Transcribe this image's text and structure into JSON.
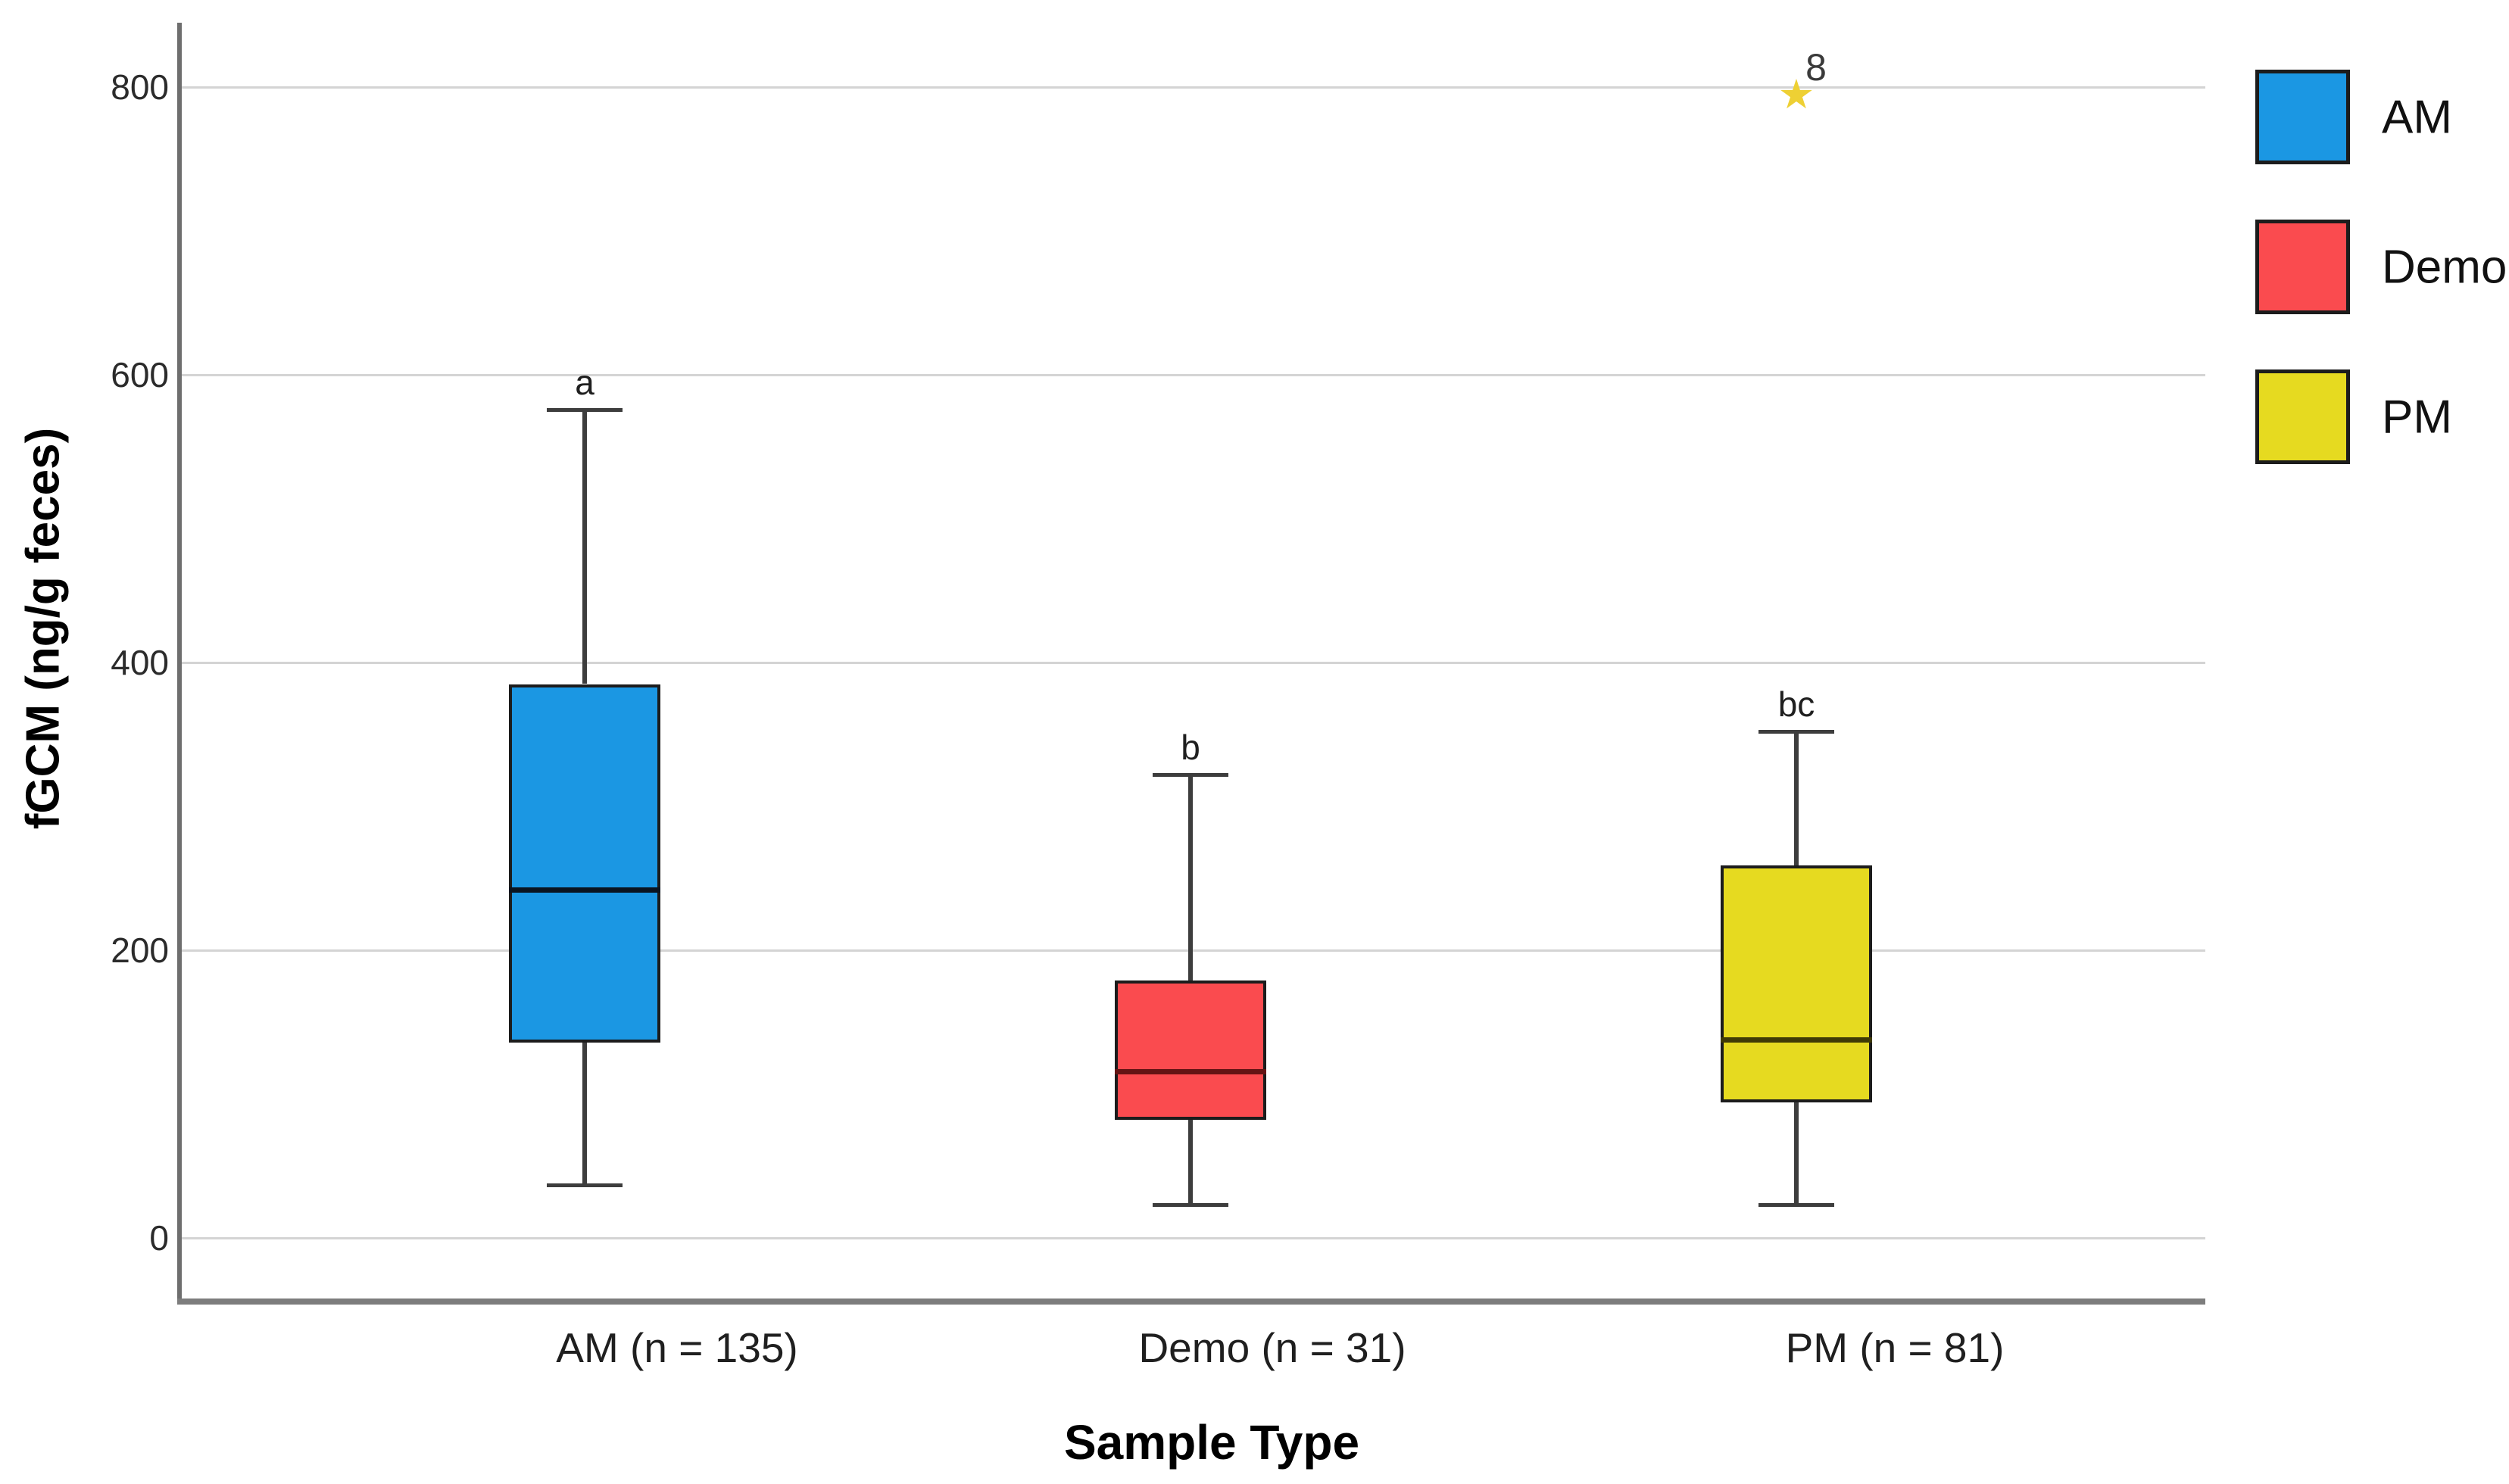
{
  "chart_data": {
    "type": "boxplot",
    "title": "",
    "xlabel": "Sample Type",
    "ylabel": "fGCM (ng/g feces)",
    "ylim": [
      0,
      800
    ],
    "yticks": [
      0,
      200,
      400,
      600,
      800
    ],
    "grid": true,
    "legend_position": "right",
    "legend": [
      {
        "label": "AM",
        "color": "#1b97e3"
      },
      {
        "label": "Demo",
        "color": "#fa4b4f"
      },
      {
        "label": "PM",
        "color": "#e6da20"
      }
    ],
    "groups": [
      {
        "label": "AM (n = 135)",
        "series": "AM",
        "color": "#1b97e3",
        "median_color": "#0a1420",
        "whisker_low": 37,
        "q1": 136,
        "median": 242,
        "q3": 385,
        "whisker_high": 576,
        "sig_letter": "a",
        "outliers": []
      },
      {
        "label": "Demo (n = 31)",
        "series": "Demo",
        "color": "#fa4b4f",
        "median_color": "#641414",
        "whisker_low": 23,
        "q1": 82,
        "median": 116,
        "q3": 179,
        "whisker_high": 322,
        "sig_letter": "b",
        "outliers": []
      },
      {
        "label": "PM (n = 81)",
        "series": "PM",
        "color": "#e6da20",
        "median_color": "#3f3a06",
        "whisker_low": 23,
        "q1": 94,
        "median": 138,
        "q3": 259,
        "whisker_high": 352,
        "sig_letter": "bc",
        "outliers": [
          {
            "value": 795,
            "case_label": "8",
            "marker": "star",
            "color": "#eed034"
          }
        ]
      }
    ],
    "colors": {
      "gridline": "#d4d4d4",
      "axis": "#6e6e6e",
      "box_border": "#1c1c1c",
      "whisker": "#3d3d3d",
      "text": "#1f1f1f"
    }
  }
}
